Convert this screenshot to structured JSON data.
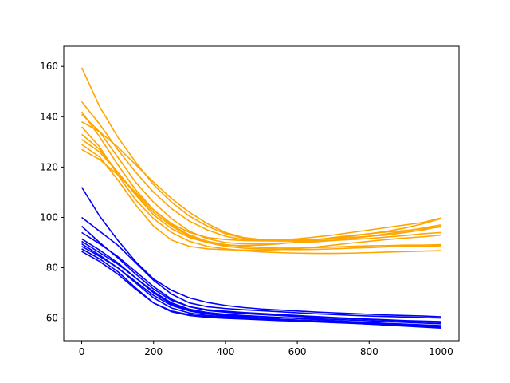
{
  "chart_data": {
    "type": "line",
    "title": "",
    "xlabel": "",
    "ylabel": "",
    "xlim": [
      -50,
      1050
    ],
    "ylim": [
      51,
      168
    ],
    "grid": false,
    "legend": "none",
    "x": [
      0,
      50,
      100,
      150,
      200,
      250,
      300,
      350,
      400,
      450,
      500,
      550,
      600,
      650,
      700,
      750,
      800,
      850,
      900,
      950,
      1000
    ],
    "x_ticks": [
      "0",
      "200",
      "400",
      "600",
      "800",
      "1000"
    ],
    "x_tick_values": [
      0,
      200,
      400,
      600,
      800,
      1000
    ],
    "y_ticks": [
      "60",
      "80",
      "100",
      "120",
      "140",
      "160"
    ],
    "y_tick_values": [
      60,
      80,
      100,
      120,
      140,
      160
    ],
    "series_colors": {
      "orange": "#FFA500",
      "blue": "#0000FF"
    },
    "series": [
      {
        "color": "orange",
        "values": [
          159.5,
          144.0,
          132.0,
          122.0,
          113.0,
          106.0,
          100.5,
          96.5,
          93.5,
          91.8,
          91.0,
          90.8,
          90.8,
          91.2,
          91.8,
          92.5,
          93.5,
          94.5,
          95.8,
          97.5,
          99.5
        ]
      },
      {
        "color": "orange",
        "values": [
          146.0,
          137.0,
          127.0,
          118.0,
          110.0,
          103.5,
          98.5,
          95.0,
          92.5,
          91.2,
          90.8,
          91.0,
          91.5,
          92.2,
          93.0,
          94.0,
          95.0,
          96.0,
          97.0,
          98.0,
          99.8
        ]
      },
      {
        "color": "orange",
        "values": [
          142.0,
          132.0,
          121.0,
          111.0,
          103.0,
          97.0,
          93.0,
          90.5,
          89.2,
          88.5,
          88.0,
          87.8,
          87.8,
          88.0,
          88.2,
          88.5,
          88.7,
          88.8,
          89.0,
          89.0,
          89.2
        ]
      },
      {
        "color": "orange",
        "values": [
          141.0,
          134.0,
          124.0,
          114.0,
          106.0,
          99.5,
          94.5,
          91.5,
          90.0,
          89.5,
          89.5,
          89.8,
          90.0,
          90.3,
          90.8,
          91.5,
          92.5,
          93.5,
          94.5,
          95.8,
          97.0
        ]
      },
      {
        "color": "orange",
        "values": [
          138.0,
          134.0,
          128.0,
          121.0,
          114.0,
          107.5,
          102.0,
          97.5,
          94.0,
          92.0,
          91.2,
          91.0,
          91.0,
          91.2,
          91.5,
          92.0,
          92.5,
          93.0,
          94.0,
          95.0,
          96.5
        ]
      },
      {
        "color": "orange",
        "values": [
          136.0,
          128.0,
          117.0,
          107.0,
          99.5,
          94.0,
          90.5,
          88.5,
          87.5,
          86.8,
          86.3,
          86.0,
          85.8,
          85.7,
          85.7,
          85.8,
          86.0,
          86.2,
          86.4,
          86.6,
          86.8
        ]
      },
      {
        "color": "orange",
        "values": [
          133.0,
          127.0,
          118.0,
          109.0,
          101.0,
          95.5,
          92.0,
          90.0,
          89.0,
          88.8,
          89.0,
          89.5,
          90.2,
          91.0,
          92.0,
          92.8,
          93.5,
          94.2,
          94.8,
          95.5,
          96.2
        ]
      },
      {
        "color": "orange",
        "values": [
          131.0,
          126.0,
          118.0,
          109.5,
          102.0,
          96.5,
          92.5,
          90.0,
          88.5,
          87.8,
          87.5,
          87.3,
          87.2,
          87.3,
          87.5,
          87.8,
          88.0,
          88.3,
          88.5,
          88.5,
          88.7
        ]
      },
      {
        "color": "orange",
        "values": [
          129.0,
          124.0,
          115.0,
          105.0,
          96.5,
          91.0,
          88.5,
          87.5,
          87.2,
          87.0,
          87.0,
          87.2,
          87.6,
          88.2,
          89.0,
          89.8,
          90.5,
          91.2,
          91.8,
          92.3,
          93.0
        ]
      },
      {
        "color": "orange",
        "values": [
          127.0,
          123.0,
          117.0,
          110.0,
          103.0,
          97.5,
          94.0,
          92.0,
          91.2,
          90.8,
          90.7,
          90.6,
          90.6,
          90.7,
          90.9,
          91.2,
          91.6,
          92.2,
          92.8,
          93.5,
          94.0
        ]
      },
      {
        "color": "blue",
        "values": [
          112.0,
          100.5,
          91.0,
          82.5,
          75.5,
          71.0,
          68.0,
          66.2,
          65.0,
          64.2,
          63.6,
          63.2,
          62.8,
          62.4,
          62.1,
          61.8,
          61.5,
          61.2,
          61.0,
          60.8,
          60.5
        ]
      },
      {
        "color": "blue",
        "values": [
          100.0,
          94.5,
          89.0,
          82.0,
          75.0,
          69.5,
          66.0,
          64.5,
          63.8,
          63.3,
          62.9,
          62.5,
          62.1,
          61.7,
          61.4,
          61.1,
          60.8,
          60.6,
          60.4,
          60.2,
          60.0
        ]
      },
      {
        "color": "blue",
        "values": [
          96.5,
          90.0,
          84.0,
          77.5,
          71.5,
          67.0,
          64.5,
          63.3,
          62.7,
          62.2,
          61.8,
          61.4,
          61.0,
          60.6,
          60.2,
          59.9,
          59.6,
          59.3,
          59.0,
          58.8,
          58.6
        ]
      },
      {
        "color": "blue",
        "values": [
          94.0,
          89.5,
          84.5,
          78.5,
          72.5,
          67.5,
          64.5,
          63.0,
          62.3,
          61.8,
          61.4,
          61.0,
          60.6,
          60.3,
          60.0,
          59.7,
          59.4,
          59.1,
          58.8,
          58.5,
          58.2
        ]
      },
      {
        "color": "blue",
        "values": [
          91.5,
          87.0,
          82.0,
          76.0,
          70.0,
          65.5,
          63.0,
          61.8,
          61.2,
          60.8,
          60.5,
          60.2,
          60.0,
          59.7,
          59.5,
          59.2,
          58.9,
          58.6,
          58.3,
          58.0,
          57.7
        ]
      },
      {
        "color": "blue",
        "values": [
          90.5,
          86.0,
          81.5,
          76.0,
          70.5,
          66.0,
          63.5,
          62.2,
          61.5,
          61.0,
          60.6,
          60.2,
          59.8,
          59.4,
          59.0,
          58.6,
          58.2,
          57.9,
          57.6,
          57.3,
          57.0
        ]
      },
      {
        "color": "blue",
        "values": [
          89.5,
          85.0,
          80.0,
          74.0,
          68.0,
          64.0,
          62.0,
          61.0,
          60.5,
          60.1,
          59.8,
          59.5,
          59.2,
          58.9,
          58.6,
          58.3,
          58.0,
          57.7,
          57.4,
          57.1,
          56.8
        ]
      },
      {
        "color": "blue",
        "values": [
          88.5,
          84.5,
          80.0,
          74.5,
          69.0,
          65.0,
          62.8,
          61.6,
          60.9,
          60.4,
          60.0,
          59.6,
          59.2,
          58.8,
          58.4,
          58.0,
          57.6,
          57.2,
          56.8,
          56.4,
          56.0
        ]
      },
      {
        "color": "blue",
        "values": [
          87.5,
          83.5,
          78.5,
          72.0,
          66.0,
          62.5,
          61.0,
          60.3,
          59.9,
          59.6,
          59.3,
          59.0,
          58.8,
          58.5,
          58.2,
          57.9,
          57.6,
          57.3,
          57.0,
          56.7,
          56.4
        ]
      },
      {
        "color": "blue",
        "values": [
          86.5,
          82.5,
          77.5,
          71.5,
          66.0,
          62.8,
          61.3,
          60.6,
          60.2,
          59.9,
          59.6,
          59.3,
          59.0,
          58.7,
          58.4,
          58.1,
          57.8,
          57.5,
          57.2,
          56.9,
          56.6
        ]
      }
    ]
  }
}
